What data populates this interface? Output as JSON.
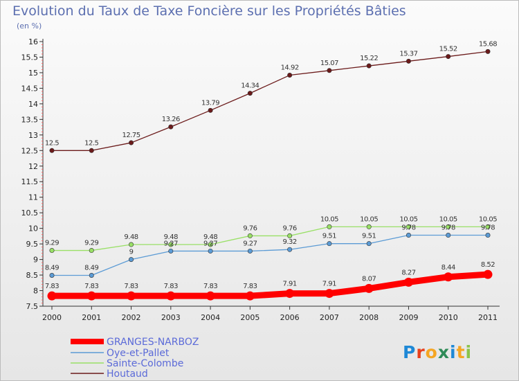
{
  "chart_data": {
    "type": "line",
    "title": "Evolution du Taux de Taxe Foncière sur les Propriétés Bâties",
    "subtitle": "(en %)",
    "xlabel": "",
    "ylabel": "",
    "x": [
      "2000",
      "2001",
      "2002",
      "2003",
      "2004",
      "2005",
      "2006",
      "2007",
      "2008",
      "2009",
      "2010",
      "2011"
    ],
    "ylim": [
      7.5,
      16
    ],
    "yticks": [
      "7.5",
      "8",
      "8.5",
      "9",
      "9.5",
      "10",
      "10.5",
      "11",
      "11.5",
      "12",
      "12.5",
      "13",
      "13.5",
      "14",
      "14.5",
      "15",
      "15.5",
      "16"
    ],
    "grid": false,
    "legend_position": "bottom-left",
    "series": [
      {
        "name": "GRANGES-NARBOZ",
        "color": "#ff0000",
        "values": [
          7.83,
          7.83,
          7.83,
          7.83,
          7.83,
          7.83,
          7.91,
          7.91,
          8.07,
          8.27,
          8.44,
          8.52
        ],
        "labels": [
          "7.83",
          "7.83",
          "7.83",
          "7.83",
          "7.83",
          "7.83",
          "7.91",
          "7.91",
          "8.07",
          "8.27",
          "8.44",
          "8.52"
        ]
      },
      {
        "name": "Oye-et-Pallet",
        "color": "#5b9bd5",
        "values": [
          8.49,
          8.49,
          9,
          9.27,
          9.27,
          9.27,
          9.32,
          9.51,
          9.51,
          9.78,
          9.78,
          9.78
        ],
        "labels": [
          "8.49",
          "8.49",
          "9",
          "9.27",
          "9.27",
          "9.27",
          "9.32",
          "9.51",
          "9.51",
          "9.78",
          "9.78",
          "9.78"
        ]
      },
      {
        "name": "Sainte-Colombe",
        "color": "#99e066",
        "values": [
          9.29,
          9.29,
          9.48,
          9.48,
          9.48,
          9.76,
          9.76,
          10.05,
          10.05,
          10.05,
          10.05,
          10.05
        ],
        "labels": [
          "9.29",
          "9.29",
          "9.48",
          "9.48",
          "9.48",
          "9.76",
          "9.76",
          "10.05",
          "10.05",
          "10.05",
          "10.05",
          "10.05"
        ]
      },
      {
        "name": "Houtaud",
        "color": "#6b1a1a",
        "values": [
          12.5,
          12.5,
          12.75,
          13.26,
          13.79,
          14.34,
          14.92,
          15.07,
          15.22,
          15.37,
          15.52,
          15.68
        ],
        "labels": [
          "12.5",
          "12.5",
          "12.75",
          "13.26",
          "13.79",
          "14.34",
          "14.92",
          "15.07",
          "15.22",
          "15.37",
          "15.52",
          "15.68"
        ]
      }
    ]
  },
  "logo": {
    "text": "Proxiti"
  }
}
